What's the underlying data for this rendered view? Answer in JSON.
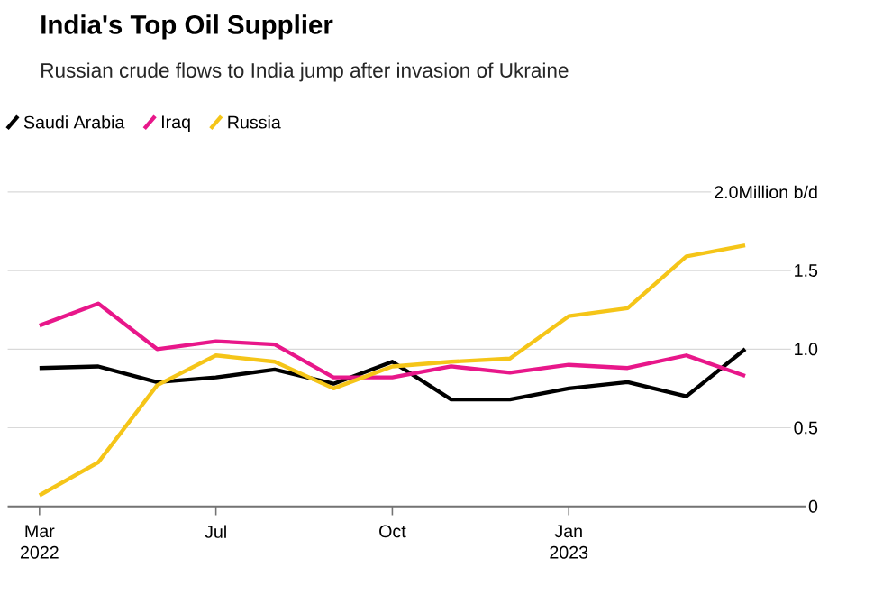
{
  "chart_data": {
    "type": "line",
    "title": "India's Top Oil Supplier",
    "subtitle": "Russian crude flows to India jump after invasion of Ukraine",
    "categories": [
      "Mar 2022",
      null,
      null,
      "Jul",
      null,
      null,
      "Oct",
      null,
      null,
      "Jan 2023",
      null,
      null,
      null
    ],
    "series": [
      {
        "name": "Saudi Arabia",
        "color": "#000000",
        "values": [
          0.88,
          0.89,
          0.79,
          0.82,
          0.87,
          0.78,
          0.92,
          0.68,
          0.68,
          0.75,
          0.79,
          0.7,
          1.0
        ]
      },
      {
        "name": "Iraq",
        "color": "#e8178a",
        "values": [
          1.15,
          1.29,
          1.0,
          1.05,
          1.03,
          0.82,
          0.82,
          0.89,
          0.85,
          0.9,
          0.88,
          0.96,
          0.83
        ]
      },
      {
        "name": "Russia",
        "color": "#f5c518",
        "values": [
          0.07,
          0.28,
          0.77,
          0.96,
          0.92,
          0.75,
          0.89,
          0.92,
          0.94,
          1.21,
          1.26,
          1.59,
          1.66
        ]
      }
    ],
    "ylim": [
      0,
      2.0
    ],
    "yticks": [
      0,
      {
        "value": 0.5,
        "label": "0.5"
      },
      {
        "value": 1.0,
        "label": "1.0"
      },
      1.5,
      {
        "value": 2.0,
        "label": "2.0Million b/d"
      }
    ],
    "grid": "y",
    "legend": "top left"
  }
}
